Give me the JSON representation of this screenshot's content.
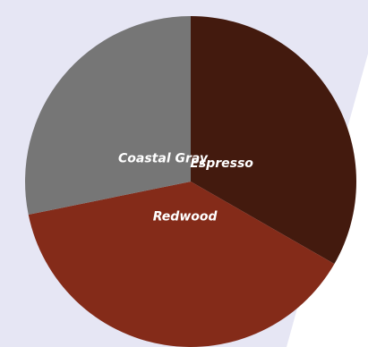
{
  "chart_data": {
    "type": "pie",
    "slices": [
      {
        "label": "Espresso",
        "value": 33.3,
        "color": "#431a0e"
      },
      {
        "label": "Redwood",
        "value": 38.5,
        "color": "#842b19"
      },
      {
        "label": "Coastal Gray",
        "value": 28.2,
        "color": "#767676"
      }
    ],
    "start_angle_deg": 0,
    "direction": "clockwise",
    "background_color": "#e6e6f4"
  }
}
